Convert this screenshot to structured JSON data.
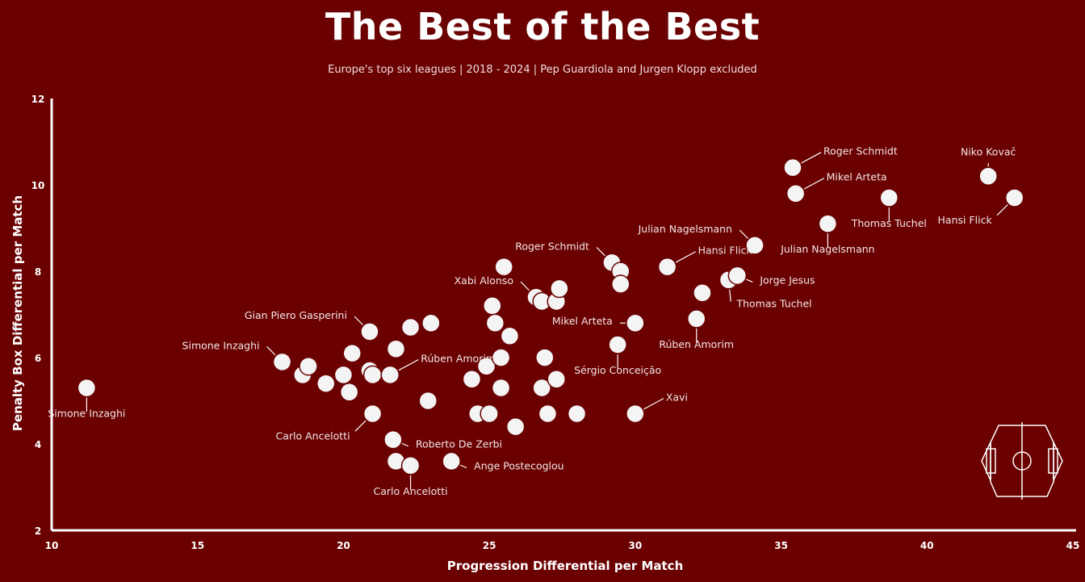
{
  "header": {
    "title": "The Best of the Best",
    "subtitle": "Europe's top six leagues | 2018 - 2024 | Pep Guardiola and Jurgen Klopp excluded"
  },
  "colors": {
    "background": "#6a0000",
    "point": "#f4f4f4",
    "text": "#ffffff"
  },
  "icons": [
    "football-pitch-icon"
  ],
  "chart_data": {
    "type": "scatter",
    "title": "The Best of the Best",
    "subtitle": "Europe's top six leagues | 2018 - 2024 | Pep Guardiola and Jurgen Klopp excluded",
    "xlabel": "Progression Differential per Match",
    "ylabel": "Penalty Box Differential per  Match",
    "xlim": [
      10,
      45
    ],
    "ylim": [
      2,
      12
    ],
    "xticks": [
      10,
      15,
      20,
      25,
      30,
      35,
      40,
      45
    ],
    "yticks": [
      2,
      4,
      6,
      8,
      10,
      12
    ],
    "grid": false,
    "points": [
      {
        "x": 11.2,
        "y": 5.3,
        "label": "Simone Inzaghi",
        "label_pos": "bottom"
      },
      {
        "x": 17.9,
        "y": 5.9,
        "label": "Simone Inzaghi",
        "label_pos": "top-left"
      },
      {
        "x": 18.6,
        "y": 5.6
      },
      {
        "x": 18.8,
        "y": 5.8
      },
      {
        "x": 19.4,
        "y": 5.4
      },
      {
        "x": 20.0,
        "y": 5.6
      },
      {
        "x": 20.2,
        "y": 5.2
      },
      {
        "x": 20.3,
        "y": 6.1
      },
      {
        "x": 20.9,
        "y": 6.6,
        "label": "Gian Piero Gasperini",
        "label_pos": "top-left"
      },
      {
        "x": 20.9,
        "y": 5.7
      },
      {
        "x": 21.0,
        "y": 5.6
      },
      {
        "x": 21.0,
        "y": 4.7,
        "label": "Carlo Ancelotti",
        "label_pos": "bottom-left"
      },
      {
        "x": 21.6,
        "y": 5.6
      },
      {
        "x": 21.6,
        "y": 5.6,
        "label": "Rúben Amorim",
        "label_pos": "top-right"
      },
      {
        "x": 21.8,
        "y": 6.2
      },
      {
        "x": 21.7,
        "y": 4.1,
        "label": "Roberto De Zerbi",
        "label_pos": "right"
      },
      {
        "x": 21.8,
        "y": 3.6
      },
      {
        "x": 22.3,
        "y": 6.7
      },
      {
        "x": 22.3,
        "y": 3.5,
        "label": "Carlo Ancelotti",
        "label_pos": "bottom"
      },
      {
        "x": 22.9,
        "y": 5.0
      },
      {
        "x": 23.0,
        "y": 6.8
      },
      {
        "x": 23.7,
        "y": 3.6,
        "label": "Ange Postecoglou",
        "label_pos": "right"
      },
      {
        "x": 24.4,
        "y": 5.5
      },
      {
        "x": 24.6,
        "y": 4.7
      },
      {
        "x": 24.9,
        "y": 5.8
      },
      {
        "x": 25.0,
        "y": 4.7
      },
      {
        "x": 25.1,
        "y": 7.2
      },
      {
        "x": 25.2,
        "y": 6.8
      },
      {
        "x": 25.4,
        "y": 6.0
      },
      {
        "x": 25.4,
        "y": 5.3
      },
      {
        "x": 25.5,
        "y": 8.1
      },
      {
        "x": 25.7,
        "y": 6.5
      },
      {
        "x": 25.9,
        "y": 4.4
      },
      {
        "x": 26.6,
        "y": 7.4,
        "label": "Xabi Alonso",
        "label_pos": "top-left"
      },
      {
        "x": 26.8,
        "y": 7.3
      },
      {
        "x": 26.8,
        "y": 5.3
      },
      {
        "x": 26.9,
        "y": 6.0
      },
      {
        "x": 27.0,
        "y": 4.7
      },
      {
        "x": 27.3,
        "y": 5.5
      },
      {
        "x": 27.3,
        "y": 7.3
      },
      {
        "x": 27.4,
        "y": 7.6
      },
      {
        "x": 28.0,
        "y": 4.7
      },
      {
        "x": 29.2,
        "y": 8.2,
        "label": "Roger Schmidt",
        "label_pos": "top-left"
      },
      {
        "x": 29.5,
        "y": 8.0
      },
      {
        "x": 29.5,
        "y": 7.7
      },
      {
        "x": 29.4,
        "y": 6.3,
        "label": "Sérgio Conceição",
        "label_pos": "bottom"
      },
      {
        "x": 30.0,
        "y": 6.8,
        "label": "Mikel Arteta",
        "label_pos": "left"
      },
      {
        "x": 30.0,
        "y": 4.7,
        "label": "Xavi",
        "label_pos": "top-right"
      },
      {
        "x": 31.1,
        "y": 8.1,
        "label": "Hansi Flick",
        "label_pos": "top-right"
      },
      {
        "x": 32.1,
        "y": 6.9,
        "label": "Rúben Amorim",
        "label_pos": "bottom"
      },
      {
        "x": 32.3,
        "y": 7.5
      },
      {
        "x": 33.2,
        "y": 7.8,
        "label": "Thomas Tuchel",
        "label_pos": "bottom-right"
      },
      {
        "x": 33.5,
        "y": 7.9,
        "label": "Jorge Jesus",
        "label_pos": "right"
      },
      {
        "x": 34.1,
        "y": 8.6,
        "label": "Julian Nagelsmann",
        "label_pos": "top-left"
      },
      {
        "x": 35.4,
        "y": 10.4,
        "label": "Roger Schmidt",
        "label_pos": "top-right"
      },
      {
        "x": 35.5,
        "y": 9.8,
        "label": "Mikel Arteta",
        "label_pos": "top-right"
      },
      {
        "x": 36.6,
        "y": 9.1,
        "label": "Julian Nagelsmann",
        "label_pos": "bottom"
      },
      {
        "x": 38.7,
        "y": 9.7,
        "label": "Thomas Tuchel",
        "label_pos": "bottom"
      },
      {
        "x": 42.1,
        "y": 10.2,
        "label": "Niko Kovač",
        "label_pos": "top"
      },
      {
        "x": 43.0,
        "y": 9.7,
        "label": "Hansi Flick",
        "label_pos": "bottom-left"
      }
    ]
  }
}
